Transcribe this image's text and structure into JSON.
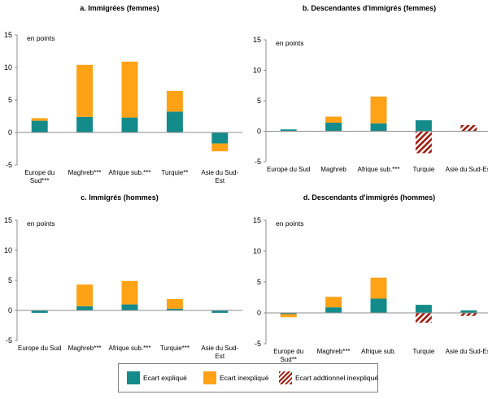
{
  "legend": {
    "explained": "Ecart expliqué",
    "unexplained": "Ecart inexpliqué",
    "additional": "Ecart addtionnel inexpliqué"
  },
  "colors": {
    "explained": "#138b8b",
    "unexplained": "#ffa216",
    "additional_stripe": "#9c1d10",
    "axis": "#8c8c8c"
  },
  "chart_data": [
    {
      "type": "bar",
      "stacked": true,
      "title": "a. Immigrées (femmes)",
      "unit_label": "en points",
      "ylim": [
        -5,
        15
      ],
      "yticks": [
        "-5",
        "0",
        "5",
        "10",
        "15"
      ],
      "categories": [
        [
          "Europe du",
          "Sud***"
        ],
        [
          "Maghreb***"
        ],
        [
          "Afrique sub.***"
        ],
        [
          "Turquie**"
        ],
        [
          "Asie du Sud-",
          "Est"
        ]
      ],
      "series": [
        {
          "name": "Ecart expliqué",
          "values": [
            1.8,
            2.4,
            2.3,
            3.2,
            -1.7
          ]
        },
        {
          "name": "Ecart inexpliqué",
          "values": [
            0.4,
            8.0,
            8.6,
            3.2,
            -1.2
          ]
        },
        {
          "name": "Ecart addtionnel inexpliqué",
          "values": [
            0,
            0,
            0,
            0,
            0
          ]
        }
      ]
    },
    {
      "type": "bar",
      "stacked": true,
      "title": "b. Descendantes d'immigrés (femmes)",
      "unit_label": "en points",
      "ylim": [
        -5,
        15
      ],
      "yticks": [
        "-5",
        "0",
        "5",
        "10",
        "15"
      ],
      "categories": [
        [
          "Europe du Sud"
        ],
        [
          "Maghreb"
        ],
        [
          "Afrique sub.***"
        ],
        [
          "Turquie"
        ],
        [
          "Asie du Sud-Est"
        ]
      ],
      "series": [
        {
          "name": "Ecart expliqué",
          "values": [
            0.3,
            1.4,
            1.3,
            1.8,
            0
          ]
        },
        {
          "name": "Ecart inexpliqué",
          "values": [
            0,
            1.0,
            4.4,
            0,
            0
          ]
        },
        {
          "name": "Ecart addtionnel inexpliqué",
          "values": [
            0,
            0,
            0,
            -3.6,
            1.0
          ]
        }
      ]
    },
    {
      "type": "bar",
      "stacked": true,
      "title": "c. Immigrés (hommes)",
      "unit_label": "en points",
      "ylim": [
        -5,
        15
      ],
      "yticks": [
        "-5",
        "0",
        "5",
        "10",
        "15"
      ],
      "categories": [
        [
          "Europe du Sud"
        ],
        [
          "Maghreb***"
        ],
        [
          "Afrique sub.***"
        ],
        [
          "Turquie***"
        ],
        [
          "Asie du Sud-",
          "Est"
        ]
      ],
      "series": [
        {
          "name": "Ecart expliqué",
          "values": [
            -0.4,
            0.7,
            1.0,
            0.3,
            -0.4
          ]
        },
        {
          "name": "Ecart inexpliqué",
          "values": [
            0,
            3.6,
            3.9,
            1.6,
            0
          ]
        },
        {
          "name": "Ecart addtionnel inexpliqué",
          "values": [
            0,
            0,
            0,
            0,
            0
          ]
        }
      ]
    },
    {
      "type": "bar",
      "stacked": true,
      "title": "d. Descendants d'immigrés (hommes)",
      "unit_label": "en points",
      "ylim": [
        -5,
        15
      ],
      "yticks": [
        "-5",
        "0",
        "5",
        "10",
        "15"
      ],
      "categories": [
        [
          "Europe du",
          "Sud**"
        ],
        [
          "Maghreb***"
        ],
        [
          "Afrique sub."
        ],
        [
          "Turquie"
        ],
        [
          "Asie du Sud-Est"
        ]
      ],
      "series": [
        {
          "name": "Ecart expliqué",
          "values": [
            -0.2,
            0.9,
            2.3,
            1.3,
            0.4
          ]
        },
        {
          "name": "Ecart inexpliqué",
          "values": [
            -0.5,
            1.7,
            3.4,
            0,
            0
          ]
        },
        {
          "name": "Ecart addtionnel inexpliqué",
          "values": [
            0,
            0,
            0,
            -1.6,
            -0.5
          ]
        }
      ]
    }
  ]
}
